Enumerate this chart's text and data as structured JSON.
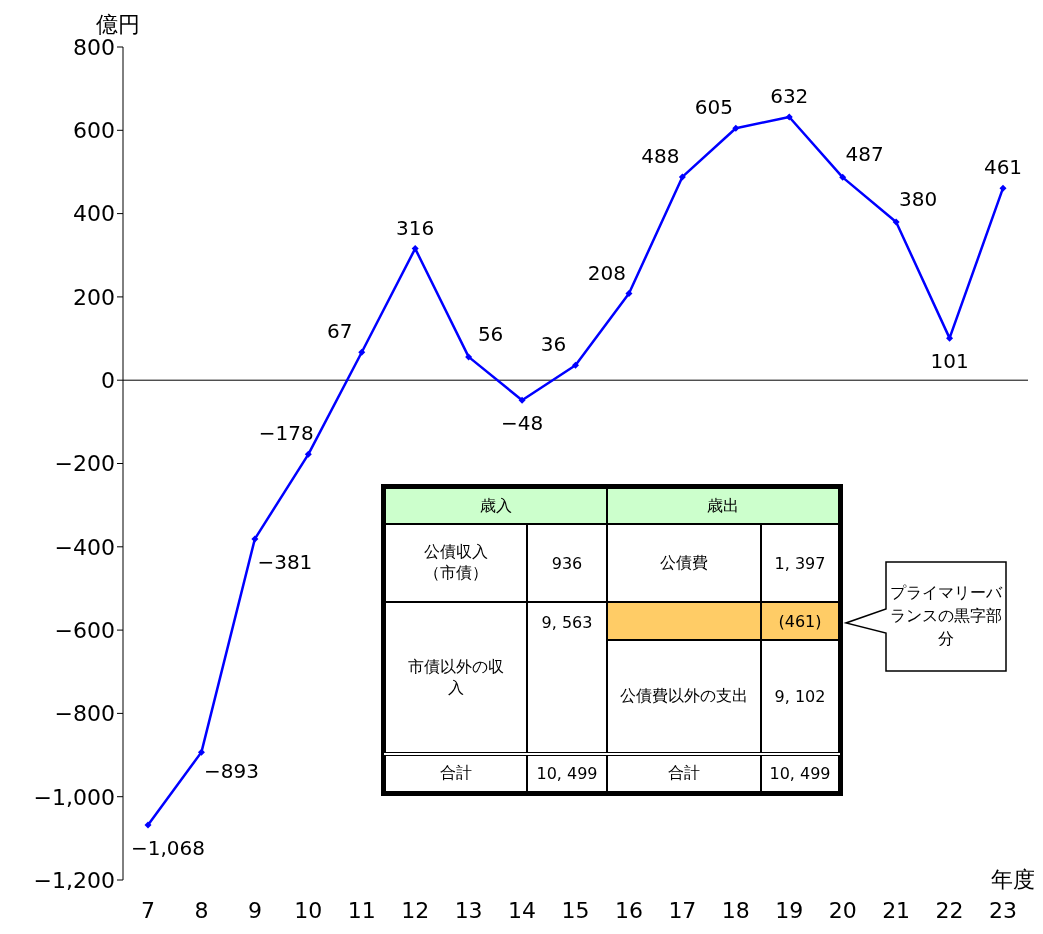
{
  "chart_data": {
    "type": "line",
    "ylabel": "億円",
    "xlabel": "年度",
    "categories": [
      "7",
      "8",
      "9",
      "10",
      "11",
      "12",
      "13",
      "14",
      "15",
      "16",
      "17",
      "18",
      "19",
      "20",
      "21",
      "22",
      "23"
    ],
    "values": [
      -1068,
      -893,
      -381,
      -178,
      67,
      316,
      56,
      -48,
      36,
      208,
      488,
      605,
      632,
      487,
      380,
      101,
      461
    ],
    "value_labels": [
      "−1,068",
      "−893",
      "−381",
      "−178",
      "67",
      "316",
      "56",
      "−48",
      "36",
      "208",
      "488",
      "605",
      "632",
      "487",
      "380",
      "101",
      "461"
    ],
    "color": "#0000ff",
    "marker": "diamond",
    "legend": false,
    "grid": false,
    "ylim": [
      -1200,
      800
    ],
    "yticks": [
      {
        "value": -1200,
        "label": "−1,200"
      },
      {
        "value": -1000,
        "label": "−1,000"
      },
      {
        "value": -800,
        "label": "−800"
      },
      {
        "value": -600,
        "label": "−600"
      },
      {
        "value": -400,
        "label": "−400"
      },
      {
        "value": -200,
        "label": "−200"
      },
      0,
      200,
      400,
      600,
      800
    ],
    "ref_lines": [
      {
        "axis": "y",
        "value": 0,
        "color": "#000000"
      }
    ],
    "annotations": [
      "歳入",
      "歳出",
      "公債収入（市債）",
      "936",
      "公債費",
      "1, 397",
      "(461)",
      "市債以外の収入",
      "9, 563",
      "公債費以外の支出",
      "9, 102",
      "合計",
      "10, 499",
      "合計",
      "10, 499",
      "プライマリーバランスの黒字部分"
    ]
  }
}
